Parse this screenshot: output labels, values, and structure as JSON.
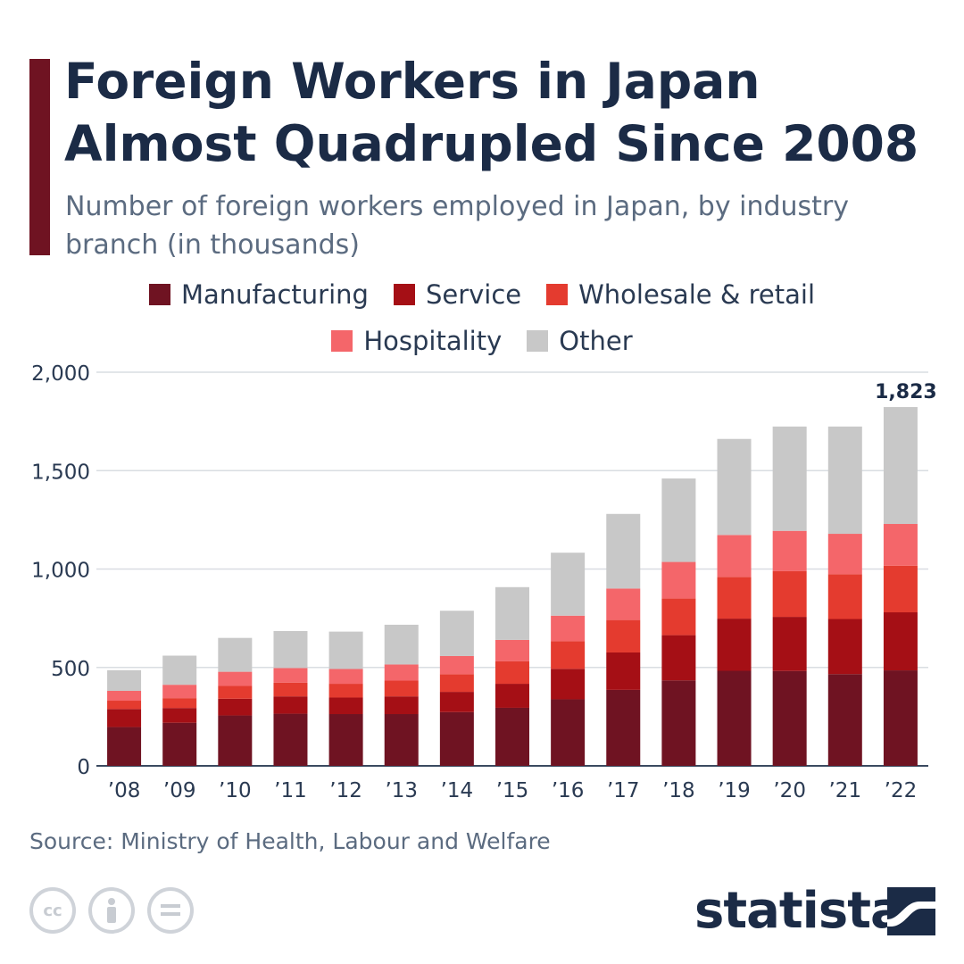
{
  "header": {
    "title": "Foreign Workers in Japan Almost Quadrupled Since 2008",
    "subtitle": "Number of foreign workers employed in Japan, by industry branch (in thousands)"
  },
  "footer": {
    "source": "Source: Ministry of Health, Labour and Welfare",
    "brand": "statista",
    "license_icons": [
      "cc-icon",
      "person-icon",
      "equals-icon"
    ]
  },
  "chart_data": {
    "type": "bar",
    "stacked": true,
    "title": "Foreign Workers in Japan Almost Quadrupled Since 2008",
    "subtitle": "Number of foreign workers employed in Japan, by industry branch (in thousands)",
    "xlabel": "",
    "ylabel": "",
    "ylim": [
      0,
      2000
    ],
    "yticks": [
      0,
      500,
      1000,
      1500,
      2000
    ],
    "ytick_labels": [
      "0",
      "500",
      "1,000",
      "1,500",
      "2,000"
    ],
    "grid": true,
    "legend_position": "top",
    "categories": [
      "’08",
      "’09",
      "’10",
      "’11",
      "’12",
      "’13",
      "’14",
      "’15",
      "’16",
      "’17",
      "’18",
      "’19",
      "’20",
      "’21",
      "’22"
    ],
    "series": [
      {
        "name": "Manufacturing",
        "color": "#6f1322",
        "values": [
          197,
          219,
          256,
          265,
          263,
          263,
          273,
          295,
          338,
          386,
          434,
          483,
          482,
          466,
          485
        ]
      },
      {
        "name": "Service",
        "color": "#a50f15",
        "values": [
          92,
          75,
          85,
          88,
          84,
          90,
          103,
          122,
          155,
          190,
          230,
          265,
          275,
          280,
          295
        ]
      },
      {
        "name": "Wholesale & retail",
        "color": "#e43b2f",
        "values": [
          42,
          50,
          65,
          70,
          70,
          80,
          90,
          115,
          140,
          165,
          186,
          212,
          232,
          228,
          237
        ]
      },
      {
        "name": "Hospitality",
        "color": "#f4666a",
        "values": [
          50,
          68,
          72,
          74,
          75,
          82,
          92,
          108,
          130,
          160,
          186,
          213,
          205,
          205,
          212
        ]
      },
      {
        "name": "Other",
        "color": "#c8c8c8",
        "values": [
          105,
          148,
          172,
          188,
          190,
          202,
          230,
          268,
          320,
          379,
          424,
          488,
          530,
          545,
          594
        ]
      }
    ],
    "totals": [
      486,
      560,
      650,
      685,
      682,
      717,
      788,
      908,
      1083,
      1280,
      1460,
      1661,
      1724,
      1724,
      1823
    ],
    "annotations": [
      {
        "category": "’22",
        "text": "1,823"
      }
    ]
  }
}
